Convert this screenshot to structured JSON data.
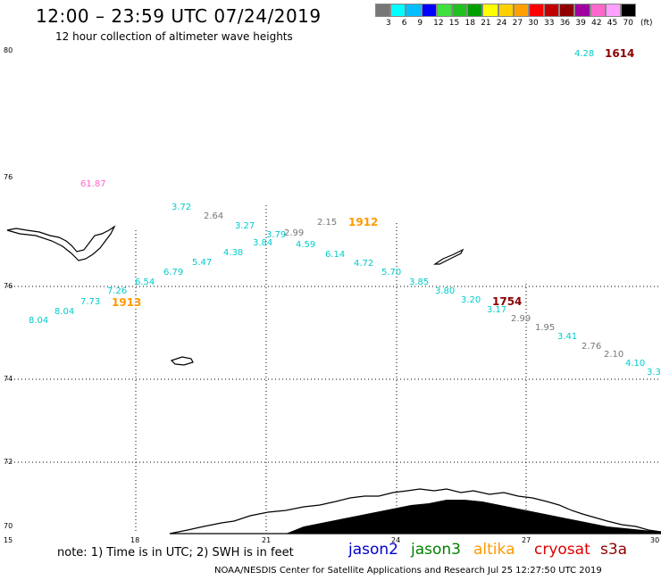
{
  "header": {
    "title": "12:00 – 23:59 UTC 07/24/2019",
    "subtitle": "12 hour collection of altimeter wave heights"
  },
  "color_scale": {
    "colors": [
      "#777777",
      "#00ffff",
      "#00bfff",
      "#0000ff",
      "#40e040",
      "#20c020",
      "#00a000",
      "#ffff00",
      "#ffd000",
      "#ffa000",
      "#ff0000",
      "#c00000",
      "#900000",
      "#a000a0",
      "#ff66cc",
      "#ffa0ff",
      "#000000"
    ],
    "labels": [
      "3",
      "6",
      "9",
      "12",
      "15",
      "18",
      "21",
      "24",
      "27",
      "30",
      "33",
      "36",
      "39",
      "42",
      "45",
      "70",
      "(ft)"
    ]
  },
  "axes": {
    "lat_labels": [
      "80",
      "76",
      "76",
      "74",
      "72",
      "70"
    ],
    "lon_labels": [
      "15",
      "18",
      "21",
      "24",
      "27",
      "30"
    ]
  },
  "observations": [
    {
      "text": "4.28",
      "color": "#00cccc"
    },
    {
      "text": "61.87",
      "color": "#ff66cc"
    },
    {
      "text": "3.72",
      "color": "#00cccc"
    },
    {
      "text": "2.64",
      "color": "#777777"
    },
    {
      "text": "3.27",
      "color": "#00cccc"
    },
    {
      "text": "3.79",
      "color": "#00cccc"
    },
    {
      "text": "2.99",
      "color": "#777777"
    },
    {
      "text": "3.84",
      "color": "#00cccc"
    },
    {
      "text": "2.15",
      "color": "#777777"
    },
    {
      "text": "4.59",
      "color": "#00cccc"
    },
    {
      "text": "4.38",
      "color": "#00cccc"
    },
    {
      "text": "6.14",
      "color": "#00cccc"
    },
    {
      "text": "5.47",
      "color": "#00cccc"
    },
    {
      "text": "4.72",
      "color": "#00cccc"
    },
    {
      "text": "6.79",
      "color": "#00cccc"
    },
    {
      "text": "5.70",
      "color": "#00cccc"
    },
    {
      "text": "6.54",
      "color": "#00cccc"
    },
    {
      "text": "3.85",
      "color": "#00cccc"
    },
    {
      "text": "7.26",
      "color": "#00cccc"
    },
    {
      "text": "3.80",
      "color": "#00cccc"
    },
    {
      "text": "7.73",
      "color": "#00cccc"
    },
    {
      "text": "3.20",
      "color": "#00cccc"
    },
    {
      "text": "8.04",
      "color": "#00cccc"
    },
    {
      "text": "3.17",
      "color": "#00cccc"
    },
    {
      "text": "8.04",
      "color": "#00cccc"
    },
    {
      "text": "2.99",
      "color": "#777777"
    },
    {
      "text": "1.95",
      "color": "#777777"
    },
    {
      "text": "3.41",
      "color": "#00cccc"
    },
    {
      "text": "2.76",
      "color": "#777777"
    },
    {
      "text": "2.10",
      "color": "#777777"
    },
    {
      "text": "4.10",
      "color": "#00cccc"
    },
    {
      "text": "3.3",
      "color": "#00cccc"
    }
  ],
  "time_labels": [
    {
      "text": "1614",
      "color": "#8b0000"
    },
    {
      "text": "1912",
      "color": "#ff9900"
    },
    {
      "text": "1913",
      "color": "#ff9900"
    },
    {
      "text": "1754",
      "color": "#8b0000"
    }
  ],
  "note": "note: 1) Time is in UTC; 2) SWH is in feet",
  "satellites": [
    {
      "name": "jason2",
      "color": "#0000cc"
    },
    {
      "name": "jason3",
      "color": "#008000"
    },
    {
      "name": "altika",
      "color": "#ff9900"
    },
    {
      "name": "cryosat",
      "color": "#dd0000"
    },
    {
      "name": "s3a",
      "color": "#8b0000"
    }
  ],
  "footer": "NOAA/NESDIS Center for Satellite Applications and Research    Jul 25 12:27:50 UTC 2019"
}
